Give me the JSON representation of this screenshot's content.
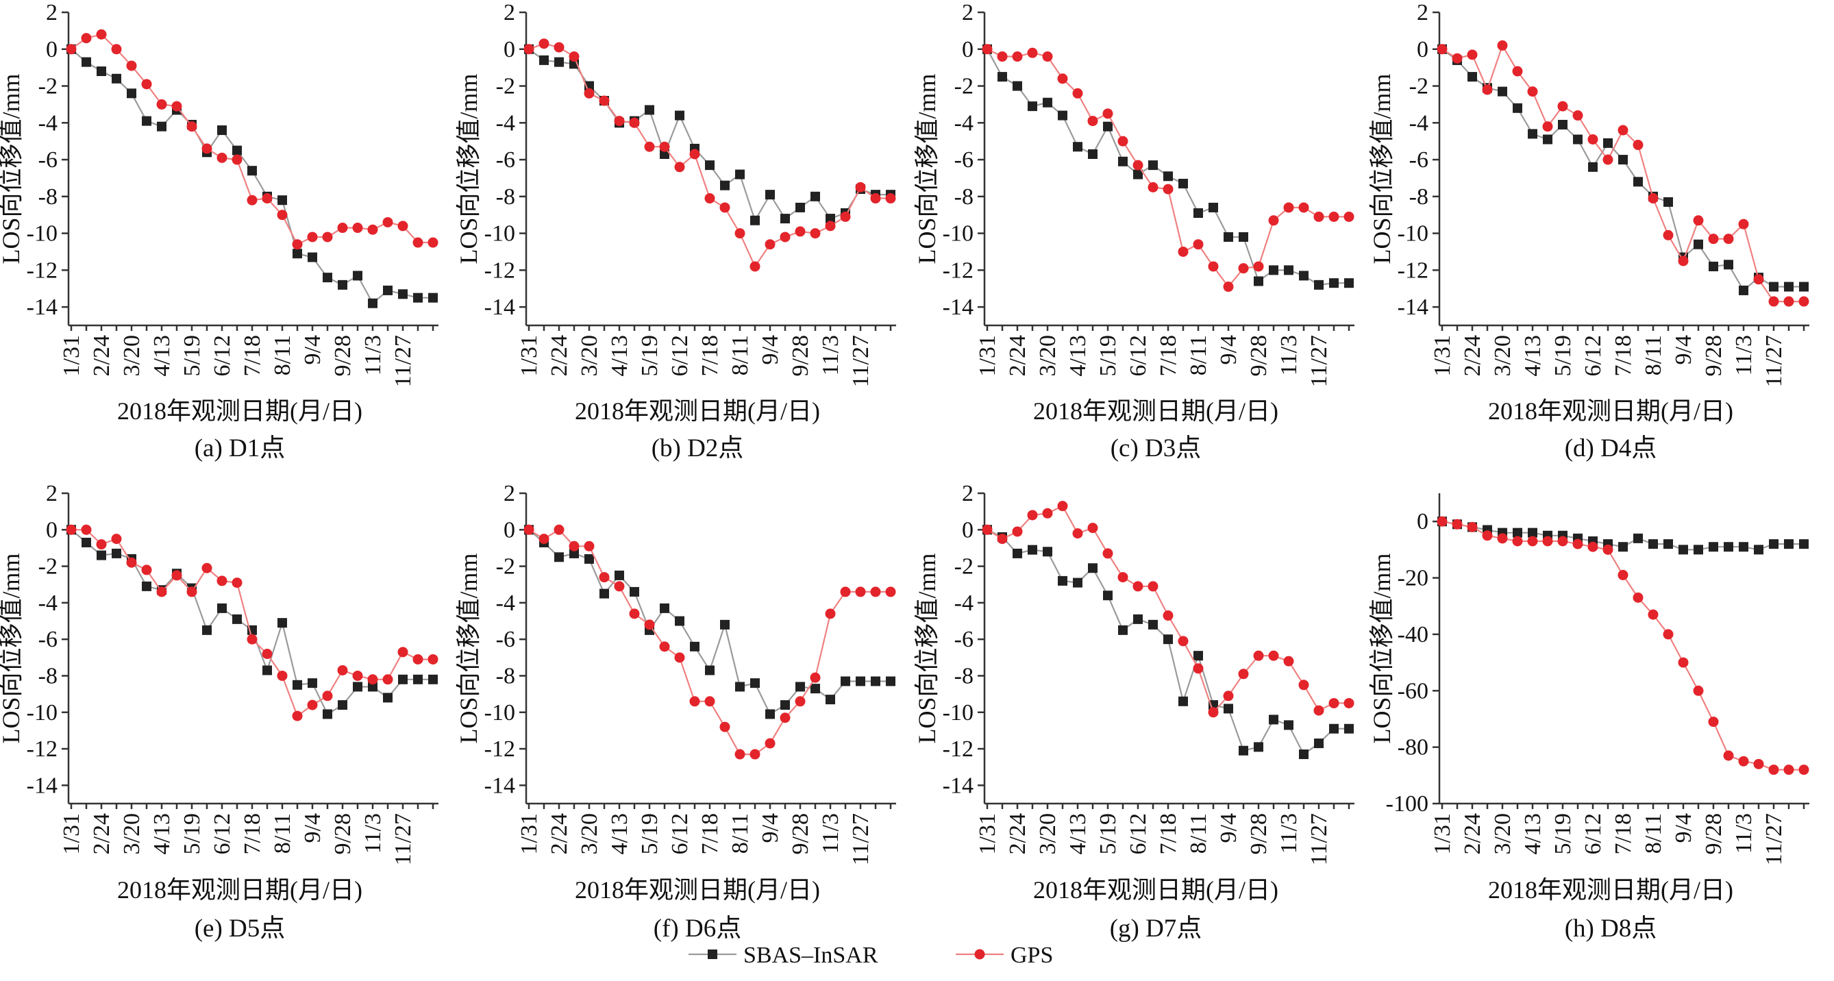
{
  "figure": {
    "legend": {
      "items": [
        {
          "label": "SBAS–InSAR",
          "color": "#222222",
          "marker": "square",
          "line_color": "#9a9a9a"
        },
        {
          "label": "GPS",
          "color": "#e3242b",
          "marker": "circle",
          "line_color": "#f08080"
        }
      ]
    }
  },
  "chart_data": [
    {
      "type": "line",
      "caption": "(a) D1点",
      "xlabel": "2018年观测日期(月/日)",
      "ylabel": "LOS向位移值/mm",
      "ylim": [
        -15,
        2
      ],
      "yticks": [
        2,
        0,
        -2,
        -4,
        -6,
        -8,
        -10,
        -12,
        -14
      ],
      "x_tick_labels": [
        "1/31",
        "2/24",
        "3/20",
        "4/13",
        "5/19",
        "6/12",
        "7/18",
        "8/11",
        "9/4",
        "9/28",
        "11/3",
        "11/27"
      ],
      "x_count": 25,
      "series": [
        {
          "name": "SBAS–InSAR",
          "values": [
            0,
            -0.7,
            -1.2,
            -1.6,
            -2.4,
            -3.9,
            -4.2,
            -3.3,
            -4.1,
            -5.6,
            -4.4,
            -5.5,
            -6.6,
            -8.0,
            -8.2,
            -11.1,
            -11.3,
            -12.4,
            -12.8,
            -12.3,
            -13.8,
            -13.1,
            -13.3,
            -13.5,
            -13.5
          ]
        },
        {
          "name": "GPS",
          "values": [
            0,
            0.6,
            0.8,
            0.0,
            -0.9,
            -1.9,
            -3.0,
            -3.1,
            -4.2,
            -5.4,
            -5.9,
            -6.0,
            -8.2,
            -8.1,
            -9.0,
            -10.6,
            -10.2,
            -10.2,
            -9.7,
            -9.7,
            -9.8,
            -9.4,
            -9.6,
            -10.5,
            -10.5
          ]
        }
      ]
    },
    {
      "type": "line",
      "caption": "(b) D2点",
      "xlabel": "2018年观测日期(月/日)",
      "ylabel": "LOS向位移值/mm",
      "ylim": [
        -15,
        2
      ],
      "yticks": [
        2,
        0,
        -2,
        -4,
        -6,
        -8,
        -10,
        -12,
        -14
      ],
      "x_tick_labels": [
        "1/31",
        "2/24",
        "3/20",
        "4/13",
        "5/19",
        "6/12",
        "7/18",
        "8/11",
        "9/4",
        "9/28",
        "11/3",
        "11/27"
      ],
      "x_count": 25,
      "series": [
        {
          "name": "SBAS–InSAR",
          "values": [
            0,
            -0.6,
            -0.7,
            -0.8,
            -2.0,
            -2.8,
            -4.0,
            -3.9,
            -3.3,
            -5.7,
            -3.6,
            -5.4,
            -6.3,
            -7.4,
            -6.8,
            -9.3,
            -7.9,
            -9.2,
            -8.6,
            -8.0,
            -9.2,
            -8.9,
            -7.6,
            -7.9,
            -7.9
          ]
        },
        {
          "name": "GPS",
          "values": [
            0,
            0.3,
            0.1,
            -0.4,
            -2.4,
            -2.8,
            -3.9,
            -4.0,
            -5.3,
            -5.3,
            -6.4,
            -5.7,
            -8.1,
            -8.6,
            -10.0,
            -11.8,
            -10.6,
            -10.2,
            -9.9,
            -10.0,
            -9.6,
            -9.1,
            -7.5,
            -8.1,
            -8.1
          ]
        }
      ]
    },
    {
      "type": "line",
      "caption": "(c) D3点",
      "xlabel": "2018年观测日期(月/日)",
      "ylabel": "LOS向位移值/mm",
      "ylim": [
        -15,
        2
      ],
      "yticks": [
        2,
        0,
        -2,
        -4,
        -6,
        -8,
        -10,
        -12,
        -14
      ],
      "x_tick_labels": [
        "1/31",
        "2/24",
        "3/20",
        "4/13",
        "5/19",
        "6/12",
        "7/18",
        "8/11",
        "9/4",
        "9/28",
        "11/3",
        "11/27"
      ],
      "x_count": 25,
      "series": [
        {
          "name": "SBAS–InSAR",
          "values": [
            0,
            -1.5,
            -2.0,
            -3.1,
            -2.9,
            -3.6,
            -5.3,
            -5.7,
            -4.2,
            -6.1,
            -6.8,
            -6.3,
            -6.9,
            -7.3,
            -8.9,
            -8.6,
            -10.2,
            -10.2,
            -12.6,
            -12.0,
            -12.0,
            -12.3,
            -12.8,
            -12.7,
            -12.7
          ]
        },
        {
          "name": "GPS",
          "values": [
            0,
            -0.4,
            -0.4,
            -0.2,
            -0.4,
            -1.6,
            -2.4,
            -3.9,
            -3.5,
            -5.0,
            -6.3,
            -7.5,
            -7.6,
            -11.0,
            -10.6,
            -11.8,
            -12.9,
            -11.9,
            -11.8,
            -9.3,
            -8.6,
            -8.6,
            -9.1,
            -9.1,
            -9.1
          ]
        }
      ]
    },
    {
      "type": "line",
      "caption": "(d) D4点",
      "xlabel": "2018年观测日期(月/日)",
      "ylabel": "LOS向位移值/mm",
      "ylim": [
        -15,
        2
      ],
      "yticks": [
        2,
        0,
        -2,
        -4,
        -6,
        -8,
        -10,
        -12,
        -14
      ],
      "x_tick_labels": [
        "1/31",
        "2/24",
        "3/20",
        "4/13",
        "5/19",
        "6/12",
        "7/18",
        "8/11",
        "9/4",
        "9/28",
        "11/3",
        "11/27"
      ],
      "x_count": 25,
      "series": [
        {
          "name": "SBAS–InSAR",
          "values": [
            0,
            -0.6,
            -1.5,
            -2.1,
            -2.3,
            -3.2,
            -4.6,
            -4.9,
            -4.1,
            -4.9,
            -6.4,
            -5.1,
            -6.0,
            -7.2,
            -8.0,
            -8.3,
            -11.3,
            -10.6,
            -11.8,
            -11.7,
            -13.1,
            -12.4,
            -12.9,
            -12.9,
            -12.9
          ]
        },
        {
          "name": "GPS",
          "values": [
            0,
            -0.5,
            -0.3,
            -2.2,
            0.2,
            -1.2,
            -2.3,
            -4.2,
            -3.1,
            -3.6,
            -4.9,
            -6.0,
            -4.4,
            -5.2,
            -8.1,
            -10.1,
            -11.5,
            -9.3,
            -10.3,
            -10.3,
            -9.5,
            -12.5,
            -13.7,
            -13.7,
            -13.7
          ]
        }
      ]
    },
    {
      "type": "line",
      "caption": "(e) D5点",
      "xlabel": "2018年观测日期(月/日)",
      "ylabel": "LOS向位移值/mm",
      "ylim": [
        -15,
        2
      ],
      "yticks": [
        2,
        0,
        -2,
        -4,
        -6,
        -8,
        -10,
        -12,
        -14
      ],
      "x_tick_labels": [
        "1/31",
        "2/24",
        "3/20",
        "4/13",
        "5/19",
        "6/12",
        "7/18",
        "8/11",
        "9/4",
        "9/28",
        "11/3",
        "11/27"
      ],
      "x_count": 25,
      "series": [
        {
          "name": "SBAS–InSAR",
          "values": [
            0,
            -0.7,
            -1.4,
            -1.3,
            -1.6,
            -3.1,
            -3.3,
            -2.4,
            -3.2,
            -5.5,
            -4.3,
            -4.9,
            -5.5,
            -7.7,
            -5.1,
            -8.5,
            -8.4,
            -10.1,
            -9.6,
            -8.6,
            -8.6,
            -9.2,
            -8.2,
            -8.2,
            -8.2
          ]
        },
        {
          "name": "GPS",
          "values": [
            0,
            0.0,
            -0.8,
            -0.5,
            -1.8,
            -2.2,
            -3.4,
            -2.5,
            -3.4,
            -2.1,
            -2.8,
            -2.9,
            -6.0,
            -6.8,
            -8.0,
            -10.2,
            -9.6,
            -9.1,
            -7.7,
            -8.0,
            -8.2,
            -8.2,
            -6.7,
            -7.1,
            -7.1
          ]
        }
      ]
    },
    {
      "type": "line",
      "caption": "(f) D6点",
      "xlabel": "2018年观测日期(月/日)",
      "ylabel": "LOS向位移值/mm",
      "ylim": [
        -15,
        2
      ],
      "yticks": [
        2,
        0,
        -2,
        -4,
        -6,
        -8,
        -10,
        -12,
        -14
      ],
      "x_tick_labels": [
        "1/31",
        "2/24",
        "3/20",
        "4/13",
        "5/19",
        "6/12",
        "7/18",
        "8/11",
        "9/4",
        "9/28",
        "11/3",
        "11/27"
      ],
      "x_count": 25,
      "series": [
        {
          "name": "SBAS–InSAR",
          "values": [
            0,
            -0.7,
            -1.5,
            -1.3,
            -1.6,
            -3.5,
            -2.5,
            -3.4,
            -5.5,
            -4.3,
            -5.0,
            -6.4,
            -7.7,
            -5.2,
            -8.6,
            -8.4,
            -10.1,
            -9.6,
            -8.6,
            -8.7,
            -9.3,
            -8.3,
            -8.3,
            -8.3,
            -8.3
          ]
        },
        {
          "name": "GPS",
          "values": [
            0,
            -0.5,
            0.0,
            -0.9,
            -0.9,
            -2.6,
            -3.1,
            -4.6,
            -5.2,
            -6.4,
            -7.0,
            -9.4,
            -9.4,
            -10.8,
            -12.3,
            -12.3,
            -11.7,
            -10.3,
            -9.4,
            -8.1,
            -4.6,
            -3.4,
            -3.4,
            -3.4,
            -3.4
          ]
        }
      ]
    },
    {
      "type": "line",
      "caption": "(g) D7点",
      "xlabel": "2018年观测日期(月/日)",
      "ylabel": "LOS向位移值/mm",
      "ylim": [
        -15,
        2
      ],
      "yticks": [
        2,
        0,
        -2,
        -4,
        -6,
        -8,
        -10,
        -12,
        -14
      ],
      "x_tick_labels": [
        "1/31",
        "2/24",
        "3/20",
        "4/13",
        "5/19",
        "6/12",
        "7/18",
        "8/11",
        "9/4",
        "9/28",
        "11/3",
        "11/27"
      ],
      "x_count": 25,
      "series": [
        {
          "name": "SBAS–InSAR",
          "values": [
            0,
            -0.4,
            -1.3,
            -1.1,
            -1.2,
            -2.8,
            -2.9,
            -2.1,
            -3.6,
            -5.5,
            -4.9,
            -5.2,
            -6.0,
            -9.4,
            -6.9,
            -9.6,
            -9.8,
            -12.1,
            -11.9,
            -10.4,
            -10.7,
            -12.3,
            -11.7,
            -10.9,
            -10.9
          ]
        },
        {
          "name": "GPS",
          "values": [
            0,
            -0.5,
            -0.1,
            0.8,
            0.9,
            1.3,
            -0.2,
            0.1,
            -1.3,
            -2.6,
            -3.1,
            -3.1,
            -4.7,
            -6.1,
            -7.6,
            -10.0,
            -9.1,
            -7.9,
            -6.9,
            -6.9,
            -7.2,
            -8.5,
            -9.9,
            -9.5,
            -9.5
          ]
        }
      ]
    },
    {
      "type": "line",
      "caption": "(h) D8点",
      "xlabel": "2018年观测日期(月/日)",
      "ylabel": "LOS向位移值/mm",
      "ylim": [
        -100,
        10
      ],
      "yticks": [
        0,
        -20,
        -40,
        -60,
        -80,
        -100
      ],
      "x_tick_labels": [
        "1/31",
        "2/24",
        "3/20",
        "4/13",
        "5/19",
        "6/12",
        "7/18",
        "8/11",
        "9/4",
        "9/28",
        "11/3",
        "11/27"
      ],
      "x_count": 25,
      "series": [
        {
          "name": "SBAS–InSAR",
          "values": [
            0,
            -1,
            -2,
            -3,
            -4,
            -4,
            -4,
            -5,
            -5,
            -6,
            -7,
            -8,
            -9,
            -6,
            -8,
            -8,
            -10,
            -10,
            -9,
            -9,
            -9,
            -10,
            -8,
            -8,
            -8
          ]
        },
        {
          "name": "GPS",
          "values": [
            0,
            -1,
            -2,
            -5,
            -6,
            -7,
            -7,
            -7,
            -7,
            -8,
            -9,
            -10,
            -19,
            -27,
            -33,
            -40,
            -50,
            -60,
            -71,
            -83,
            -85,
            -86,
            -88,
            -88,
            -88
          ]
        }
      ]
    }
  ]
}
